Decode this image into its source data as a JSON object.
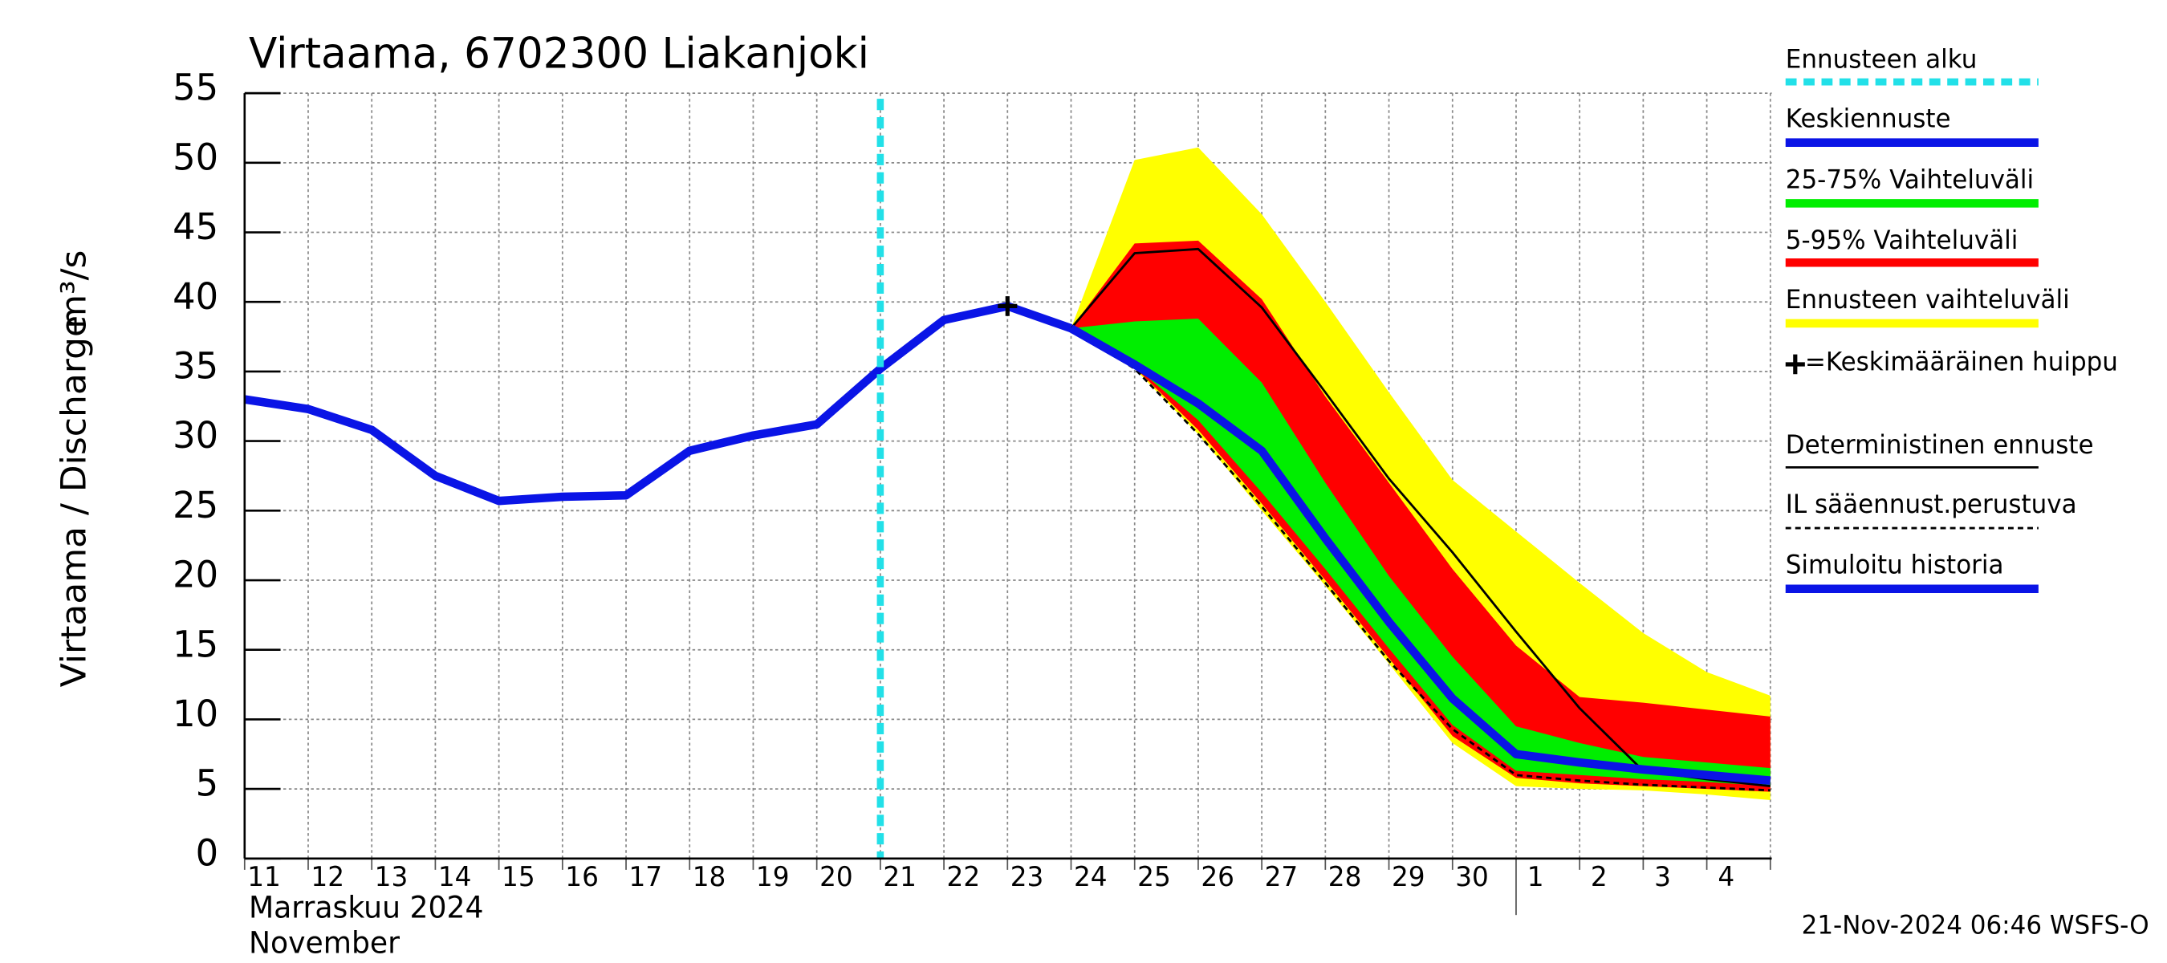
{
  "chart_data": {
    "type": "line",
    "title": "Virtaama, 6702300 Liakanjoki",
    "y_label": "Virtaama / Discharge",
    "y_unit": "m³/s",
    "month_label": "Marraskuu 2024",
    "month_label_en": "November",
    "footer": "21-Nov-2024 06:46 WSFS-O",
    "categories": [
      "11",
      "12",
      "13",
      "14",
      "15",
      "16",
      "17",
      "18",
      "19",
      "20",
      "21",
      "22",
      "23",
      "24",
      "25",
      "26",
      "27",
      "28",
      "29",
      "30",
      "1",
      "2",
      "3",
      "4",
      null
    ],
    "ylim": [
      0,
      55
    ],
    "yticks": [
      0,
      5,
      10,
      15,
      20,
      25,
      30,
      35,
      40,
      45,
      50,
      55
    ],
    "grid": true,
    "forecast_start": {
      "name": "Ennusteen alku",
      "color": "#22e0e8",
      "x": 10
    },
    "bands": [
      {
        "name": "Ennusteen vaihteluväli",
        "color": "#ffff00",
        "low": [
          null,
          null,
          null,
          null,
          null,
          null,
          null,
          null,
          null,
          null,
          null,
          null,
          null,
          38.1,
          35.2,
          30.5,
          25,
          19.6,
          14,
          8.3,
          5.2,
          5.0,
          4.9,
          4.6,
          4.2
        ],
        "high": [
          null,
          null,
          null,
          null,
          null,
          null,
          null,
          null,
          null,
          null,
          null,
          null,
          null,
          38.1,
          50.2,
          51.1,
          46.3,
          40,
          33.5,
          27.2,
          23.5,
          19.8,
          16.2,
          13.4,
          11.7
        ]
      },
      {
        "name": "5-95% Vaihteluväli",
        "color": "#ff0000",
        "low": [
          null,
          null,
          null,
          null,
          null,
          null,
          null,
          null,
          null,
          null,
          null,
          null,
          null,
          38.1,
          35.3,
          30.8,
          25.5,
          20,
          14.4,
          8.8,
          5.8,
          5.4,
          5.2,
          5.0,
          4.8
        ],
        "high": [
          null,
          null,
          null,
          null,
          null,
          null,
          null,
          null,
          null,
          null,
          null,
          null,
          null,
          38.1,
          44.2,
          44.4,
          40.2,
          33.2,
          27,
          20.8,
          15.3,
          11.6,
          11.2,
          10.7,
          10.2
        ]
      },
      {
        "name": "25-75% Vaihteluväli",
        "color": "#00ee00",
        "low": [
          null,
          null,
          null,
          null,
          null,
          null,
          null,
          null,
          null,
          null,
          null,
          null,
          null,
          38.1,
          35.4,
          31.5,
          26.3,
          20.8,
          15.1,
          9.6,
          6.3,
          6.0,
          5.7,
          5.5,
          5.2
        ],
        "high": [
          null,
          null,
          null,
          null,
          null,
          null,
          null,
          null,
          null,
          null,
          null,
          null,
          null,
          38.1,
          38.6,
          38.8,
          34.2,
          27,
          20.3,
          14.5,
          9.5,
          8.3,
          7.3,
          6.9,
          6.5
        ]
      }
    ],
    "series": [
      {
        "name": "Keskiennuste",
        "color": "#0a14e6",
        "style": "thick",
        "values": [
          null,
          null,
          null,
          null,
          null,
          null,
          null,
          null,
          null,
          null,
          null,
          null,
          null,
          38.1,
          35.5,
          32.7,
          29.3,
          23,
          17,
          11.5,
          7.5,
          6.9,
          6.4,
          6.0,
          5.6
        ]
      },
      {
        "name": "Deterministinen ennuste",
        "color": "#000000",
        "style": "thin",
        "values": [
          null,
          null,
          null,
          null,
          null,
          null,
          null,
          null,
          null,
          null,
          null,
          null,
          null,
          38.1,
          43.5,
          43.8,
          39.6,
          33.5,
          27.3,
          22,
          16.3,
          10.8,
          6.3,
          5.7,
          5.2
        ]
      },
      {
        "name": "IL sääennust.perustuva",
        "color": "#000000",
        "style": "dashed",
        "values": [
          null,
          null,
          null,
          null,
          null,
          null,
          null,
          null,
          null,
          null,
          null,
          null,
          null,
          38.1,
          35.2,
          30.5,
          25.3,
          19.8,
          14.2,
          9.3,
          6.0,
          5.6,
          5.3,
          5.1,
          4.9
        ]
      },
      {
        "name": "Simuloitu historia",
        "color": "#0a14e6",
        "style": "thick",
        "values": [
          33,
          32.3,
          30.8,
          27.5,
          25.7,
          26,
          26.1,
          29.3,
          30.4,
          31.2,
          35.2,
          38.7,
          39.7,
          38.1,
          null,
          null,
          null,
          null,
          null,
          null,
          null,
          null,
          null,
          null,
          null
        ]
      }
    ],
    "peak": {
      "name": "=Keskimääräinen huippu",
      "x": 12,
      "value": 39.7
    }
  }
}
